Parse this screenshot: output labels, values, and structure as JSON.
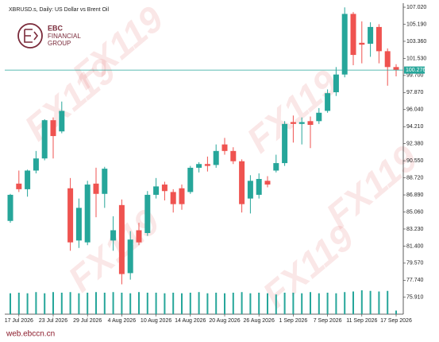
{
  "chart_data": {
    "type": "candlestick",
    "title": "XBRUSD.s, Daily: US Dollar vs Brent Oil",
    "logo": [
      "EBC",
      "FINANCIAL",
      "GROUP"
    ],
    "watermark": "FX119",
    "footer": "web.ebccn.cn",
    "up_color": "#26a69a",
    "down_color": "#ef5350",
    "categories": [
      null,
      "17 Jul 2026",
      null,
      null,
      null,
      "23 Jul 2026",
      null,
      null,
      null,
      "29 Jul 2026",
      null,
      null,
      null,
      "4 Aug 2026",
      null,
      null,
      null,
      "10 Aug 2026",
      null,
      null,
      null,
      "14 Aug 2026",
      null,
      null,
      null,
      "20 Aug 2026",
      null,
      null,
      null,
      "26 Aug 2026",
      null,
      null,
      null,
      "1 Sep 2026",
      null,
      null,
      null,
      "7 Sep 2026",
      null,
      null,
      null,
      "11 Sep 2026",
      null,
      null,
      null,
      "17 Sep 2026"
    ],
    "open": [
      84.1,
      88.1,
      87.5,
      89.5,
      90.8,
      94.9,
      93.7,
      87.6,
      82.0,
      81.8,
      88.1,
      87.0,
      82.0,
      85.8,
      78.5,
      83.1,
      82.8,
      86.9,
      88.0,
      87.2,
      87.6,
      87.2,
      89.8,
      90.2,
      90.1,
      92.3,
      91.6,
      90.5,
      86.5,
      86.9,
      88.4,
      89.5,
      90.3,
      94.7,
      94.5,
      94.8,
      94.8,
      95.9,
      97.9,
      99.8,
      106.3,
      103.2,
      103.1,
      104.9,
      102.3,
      100.6
    ],
    "high": [
      87.0,
      89.5,
      89.6,
      91.6,
      95.0,
      95.2,
      96.9,
      88.7,
      86.5,
      88.4,
      89.8,
      89.9,
      84.6,
      86.4,
      83.0,
      83.9,
      87.3,
      88.7,
      88.3,
      87.5,
      88.0,
      90.0,
      90.4,
      91.0,
      92.3,
      93.0,
      92.0,
      90.7,
      89.0,
      89.2,
      88.9,
      91.2,
      94.8,
      95.4,
      95.2,
      95.3,
      96.2,
      98.2,
      100.6,
      107.0,
      106.5,
      105.5,
      105.4,
      105.2,
      102.6,
      100.9
    ],
    "low": [
      83.9,
      87.2,
      86.7,
      89.2,
      90.6,
      90.8,
      93.5,
      80.9,
      81.2,
      81.5,
      84.5,
      85.5,
      80.9,
      77.3,
      77.8,
      81.5,
      82.5,
      86.5,
      86.3,
      85.0,
      85.3,
      87.0,
      89.3,
      89.4,
      89.8,
      91.2,
      90.2,
      85.0,
      84.9,
      86.5,
      87.7,
      89.3,
      90.0,
      92.5,
      92.3,
      91.9,
      94.5,
      95.7,
      97.5,
      99.5,
      100.8,
      101.0,
      101.7,
      101.0,
      98.6,
      99.6
    ],
    "close": [
      86.9,
      87.5,
      89.5,
      90.8,
      94.9,
      93.2,
      95.9,
      81.8,
      85.5,
      88.0,
      87.0,
      89.7,
      83.1,
      78.4,
      82.1,
      81.8,
      86.9,
      87.8,
      87.3,
      85.9,
      85.9,
      89.8,
      90.2,
      90.0,
      91.6,
      91.6,
      90.5,
      85.9,
      88.4,
      88.6,
      88.0,
      90.3,
      94.5,
      94.5,
      94.7,
      94.4,
      95.7,
      97.8,
      99.8,
      106.3,
      101.9,
      103.0,
      104.9,
      102.3,
      100.6,
      100.3
    ],
    "volume": [
      70,
      72,
      70,
      74,
      70,
      74,
      72,
      74,
      70,
      72,
      74,
      72,
      74,
      72,
      70,
      74,
      72,
      72,
      70,
      72,
      70,
      72,
      74,
      70,
      72,
      70,
      72,
      74,
      70,
      72,
      70,
      66,
      72,
      72,
      70,
      74,
      70,
      72,
      70,
      74,
      76,
      80,
      78,
      76,
      78,
      12
    ],
    "ylim": [
      74.1,
      107.45
    ],
    "yticks": [
      {
        "value": 107.02,
        "label": "107.020"
      },
      {
        "value": 105.19,
        "label": "105.190"
      },
      {
        "value": 103.36,
        "label": "103.360"
      },
      {
        "value": 101.53,
        "label": "101.530"
      },
      {
        "value": 99.7,
        "label": "99.700"
      },
      {
        "value": 97.87,
        "label": "97.870"
      },
      {
        "value": 96.04,
        "label": "96.040"
      },
      {
        "value": 94.21,
        "label": "94.210"
      },
      {
        "value": 92.38,
        "label": "92.380"
      },
      {
        "value": 90.55,
        "label": "90.550"
      },
      {
        "value": 88.72,
        "label": "88.720"
      },
      {
        "value": 86.89,
        "label": "86.890"
      },
      {
        "value": 85.06,
        "label": "85.060"
      },
      {
        "value": 83.23,
        "label": "83.230"
      },
      {
        "value": 81.4,
        "label": "81.400"
      },
      {
        "value": 79.57,
        "label": "79.570"
      },
      {
        "value": 77.74,
        "label": "77.740"
      },
      {
        "value": 75.91,
        "label": "75.910"
      }
    ],
    "price_line": {
      "value": 100.276,
      "label": "100.276"
    }
  }
}
